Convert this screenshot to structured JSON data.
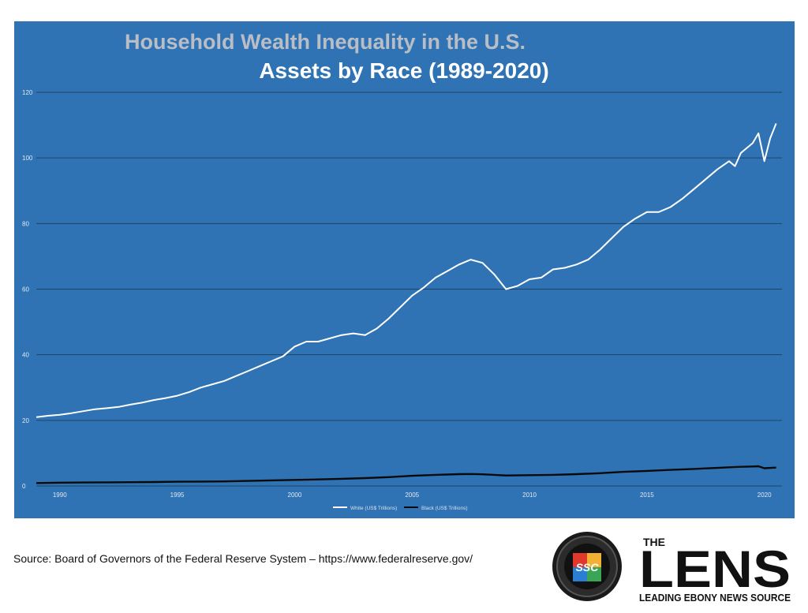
{
  "colors": {
    "panel_bg": "#2f73b4",
    "title": "#b9bec6",
    "subtitle": "#ffffff",
    "grid": "#1d4466",
    "tick": "#dfe8f2",
    "white_series": "#ffffff",
    "black_series": "#0a0a0a",
    "legend_text": "#d6e0ea",
    "source_text": "#111111"
  },
  "chart_data": {
    "type": "line",
    "title": "Household Wealth Inequality in the U.S.",
    "subtitle": "Assets by Race (1989-2020)",
    "xlabel": "",
    "ylabel": "",
    "xlim": [
      1989.0,
      2020.75
    ],
    "ylim": [
      0,
      120
    ],
    "yticks": [
      0,
      20,
      40,
      60,
      80,
      100,
      120
    ],
    "xticks": [
      1990,
      1995,
      2000,
      2005,
      2010,
      2015,
      2020
    ],
    "grid": true,
    "legend_position": "bottom-center",
    "series": [
      {
        "name": "White (US$ Trillions)",
        "color": "#ffffff",
        "x": [
          1989.0,
          1989.5,
          1990.0,
          1990.5,
          1991.0,
          1991.5,
          1992.0,
          1992.5,
          1993.0,
          1993.5,
          1994.0,
          1994.5,
          1995.0,
          1995.5,
          1996.0,
          1996.5,
          1997.0,
          1997.5,
          1998.0,
          1998.5,
          1999.0,
          1999.5,
          2000.0,
          2000.5,
          2001.0,
          2001.5,
          2002.0,
          2002.5,
          2003.0,
          2003.5,
          2004.0,
          2004.5,
          2005.0,
          2005.5,
          2006.0,
          2006.5,
          2007.0,
          2007.5,
          2008.0,
          2008.5,
          2009.0,
          2009.5,
          2010.0,
          2010.5,
          2011.0,
          2011.5,
          2012.0,
          2012.5,
          2013.0,
          2013.5,
          2014.0,
          2014.5,
          2015.0,
          2015.5,
          2016.0,
          2016.5,
          2017.0,
          2017.5,
          2018.0,
          2018.5,
          2018.75,
          2019.0,
          2019.5,
          2019.75,
          2020.0,
          2020.25,
          2020.5
        ],
        "values": [
          21.0,
          21.4,
          21.7,
          22.2,
          22.8,
          23.4,
          23.7,
          24.1,
          24.8,
          25.4,
          26.2,
          26.8,
          27.5,
          28.6,
          30.0,
          31.0,
          32.0,
          33.5,
          35.0,
          36.5,
          38.0,
          39.5,
          42.5,
          44.0,
          44.0,
          45.0,
          46.0,
          46.5,
          46.0,
          48.0,
          51.0,
          54.5,
          58.0,
          60.5,
          63.5,
          65.5,
          67.5,
          69.0,
          68.0,
          64.5,
          60.0,
          61.0,
          63.0,
          63.5,
          66.0,
          66.5,
          67.5,
          69.0,
          72.0,
          75.5,
          79.0,
          81.5,
          83.5,
          83.5,
          85.0,
          87.5,
          90.5,
          93.5,
          96.5,
          99.0,
          97.5,
          101.5,
          104.5,
          107.5,
          99.0,
          106.0,
          110.5
        ]
      },
      {
        "name": "Black (US$ Trillions)",
        "color": "#0a0a0a",
        "x": [
          1989.0,
          1990.0,
          1991.0,
          1992.0,
          1993.0,
          1994.0,
          1995.0,
          1996.0,
          1997.0,
          1998.0,
          1999.0,
          2000.0,
          2001.0,
          2002.0,
          2003.0,
          2004.0,
          2005.0,
          2006.0,
          2007.0,
          2007.5,
          2008.0,
          2009.0,
          2010.0,
          2011.0,
          2012.0,
          2013.0,
          2014.0,
          2015.0,
          2016.0,
          2017.0,
          2018.0,
          2018.5,
          2019.0,
          2019.5,
          2019.75,
          2020.0,
          2020.25,
          2020.5
        ],
        "values": [
          0.9,
          1.0,
          1.05,
          1.1,
          1.15,
          1.2,
          1.3,
          1.35,
          1.4,
          1.55,
          1.7,
          1.85,
          2.0,
          2.2,
          2.4,
          2.7,
          3.1,
          3.4,
          3.6,
          3.65,
          3.55,
          3.2,
          3.3,
          3.4,
          3.6,
          3.9,
          4.3,
          4.6,
          4.9,
          5.2,
          5.5,
          5.7,
          5.85,
          5.95,
          6.0,
          5.4,
          5.5,
          5.6
        ]
      }
    ]
  },
  "source": {
    "text": "Source: Board of Governors of the Federal Reserve System – https://www.federalreserve.gov/"
  },
  "logo": {
    "badge_text": "SSC",
    "brand_top": "THE",
    "brand_main": "LENS",
    "tagline": "LEADING EBONY NEWS SOURCE"
  }
}
